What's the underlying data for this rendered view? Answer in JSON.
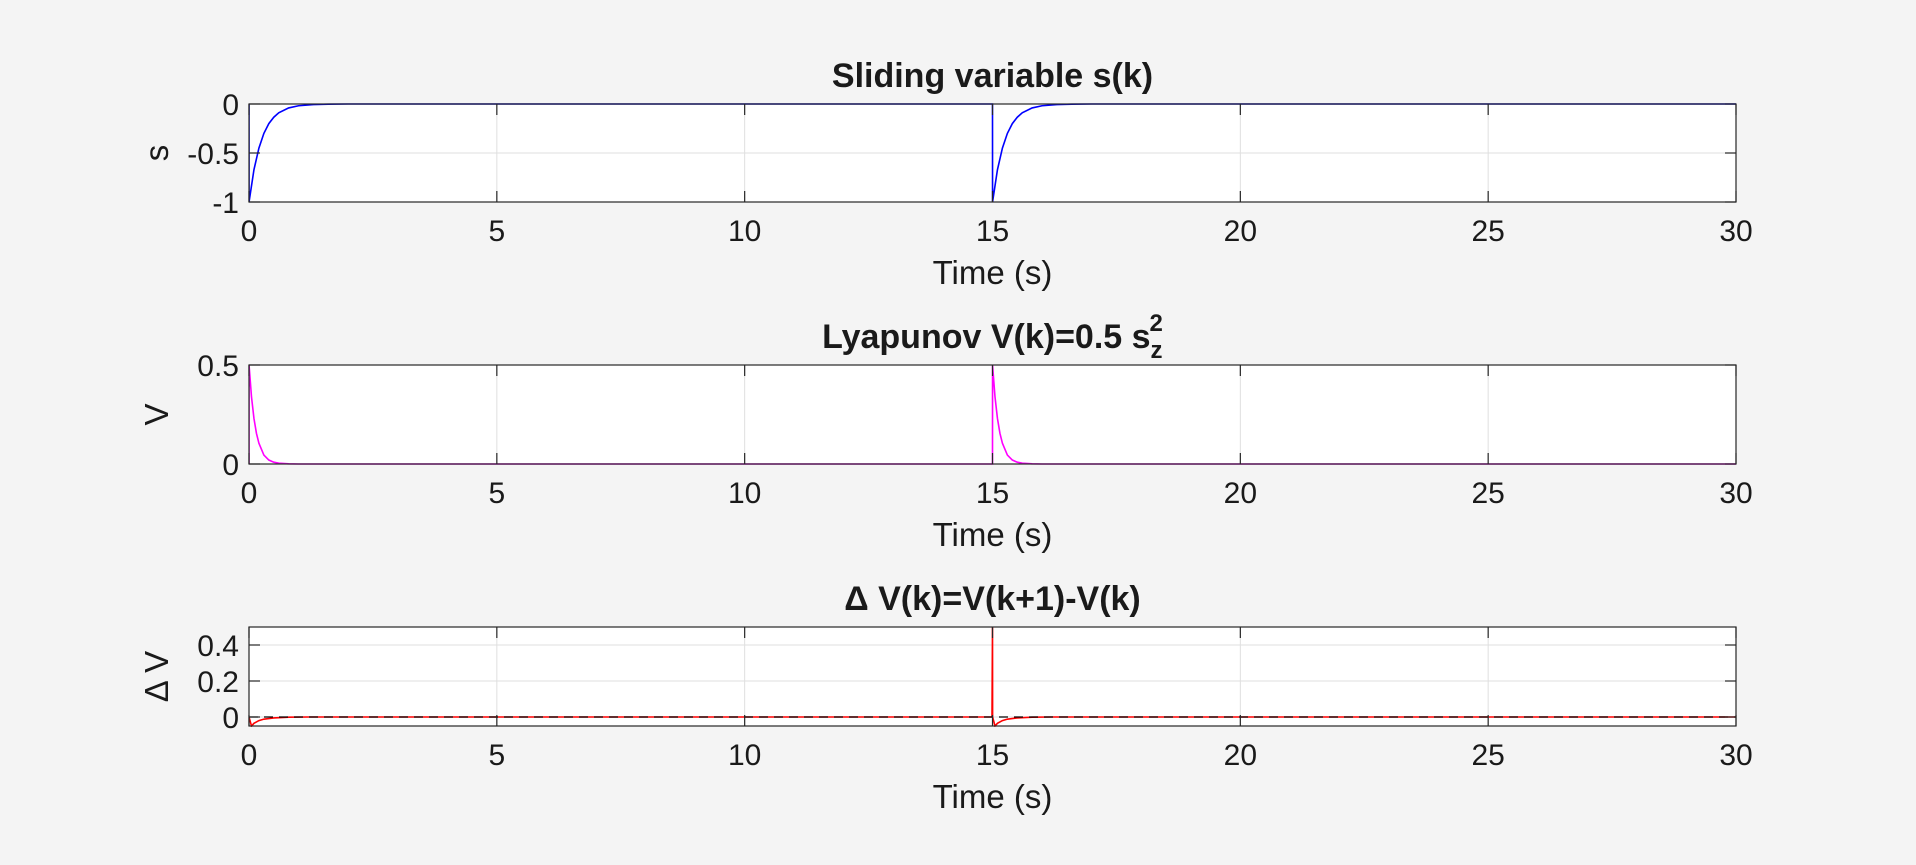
{
  "chart_data": [
    {
      "type": "line",
      "title": "Sliding variable s(k)",
      "xlabel": "Time (s)",
      "ylabel": "s",
      "xlim": [
        0,
        30
      ],
      "ylim": [
        -1,
        0
      ],
      "xticks": [
        0,
        5,
        10,
        15,
        20,
        25,
        30
      ],
      "yticks": [
        -1,
        -0.5,
        0
      ],
      "grid": true,
      "series": [
        {
          "color": "#0000ff",
          "x": [
            0,
            0.001,
            0.1,
            0.2,
            0.3,
            0.4,
            0.5,
            0.6,
            0.8,
            1.0,
            1.3,
            1.6,
            2.0,
            14.999,
            15.0,
            15.001,
            15.1,
            15.2,
            15.3,
            15.4,
            15.5,
            15.6,
            15.8,
            16.0,
            16.3,
            16.6,
            17.0,
            30
          ],
          "y": [
            0,
            -1,
            -0.67,
            -0.45,
            -0.3,
            -0.2,
            -0.135,
            -0.09,
            -0.04,
            -0.018,
            -0.006,
            -0.002,
            0,
            0,
            0,
            -1,
            -0.67,
            -0.45,
            -0.3,
            -0.2,
            -0.135,
            -0.09,
            -0.04,
            -0.018,
            -0.006,
            -0.002,
            0,
            0
          ]
        }
      ]
    },
    {
      "type": "line",
      "title_main": "Lyapunov  V(k)=0.5  s",
      "title_sup": "2",
      "title_sub": "z",
      "xlabel": "Time (s)",
      "ylabel": "V",
      "xlim": [
        0,
        30
      ],
      "ylim": [
        0,
        0.5
      ],
      "xticks": [
        0,
        5,
        10,
        15,
        20,
        25,
        30
      ],
      "yticks": [
        0,
        0.5
      ],
      "grid": true,
      "series": [
        {
          "color": "#ff00ff",
          "x": [
            0,
            0.001,
            0.05,
            0.1,
            0.15,
            0.2,
            0.3,
            0.4,
            0.5,
            0.6,
            0.8,
            1.0,
            14.999,
            15.0,
            15.001,
            15.05,
            15.1,
            15.15,
            15.2,
            15.3,
            15.4,
            15.5,
            15.6,
            15.8,
            16.0,
            30
          ],
          "y": [
            0,
            0.5,
            0.34,
            0.23,
            0.155,
            0.105,
            0.045,
            0.02,
            0.009,
            0.004,
            0.001,
            0,
            0,
            0,
            0.5,
            0.34,
            0.23,
            0.155,
            0.105,
            0.045,
            0.02,
            0.009,
            0.004,
            0.001,
            0,
            0
          ]
        }
      ]
    },
    {
      "type": "line",
      "title": "Δ  V(k)=V(k+1)-V(k)",
      "xlabel": "Time (s)",
      "ylabel": "Δ  V",
      "xlim": [
        0,
        30
      ],
      "ylim": [
        -0.05,
        0.5
      ],
      "xticks": [
        0,
        5,
        10,
        15,
        20,
        25,
        30
      ],
      "yticks": [
        0,
        0.2,
        0.4
      ],
      "grid": true,
      "series": [
        {
          "color": "#ff0000",
          "x": [
            0,
            0.05,
            0.1,
            0.2,
            0.3,
            0.5,
            0.8,
            1.2,
            14.99,
            15.0,
            15.002,
            15.05,
            15.1,
            15.2,
            15.3,
            15.5,
            15.8,
            16.2,
            30
          ],
          "y": [
            0,
            -0.05,
            -0.035,
            -0.02,
            -0.012,
            -0.005,
            -0.001,
            0,
            0,
            0.5,
            0,
            -0.05,
            -0.035,
            -0.02,
            -0.012,
            -0.005,
            -0.001,
            0,
            0
          ]
        },
        {
          "color": "#000000",
          "dashed": true,
          "x": [
            0,
            30
          ],
          "y": [
            0,
            0
          ]
        }
      ]
    }
  ]
}
